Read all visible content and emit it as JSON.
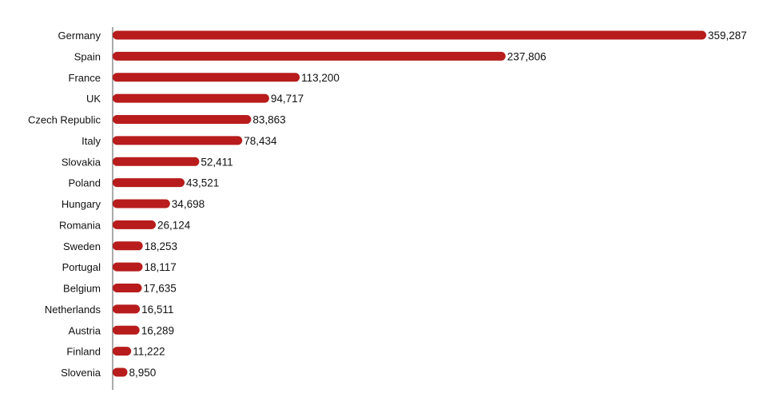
{
  "chart_data": {
    "type": "bar",
    "orientation": "horizontal",
    "categories": [
      "Germany",
      "Spain",
      "France",
      "UK",
      "Czech Republic",
      "Italy",
      "Slovakia",
      "Poland",
      "Hungary",
      "Romania",
      "Sweden",
      "Portugal",
      "Belgium",
      "Netherlands",
      "Austria",
      "Finland",
      "Slovenia"
    ],
    "values": [
      359287,
      237806,
      113200,
      94717,
      83863,
      78434,
      52411,
      43521,
      34698,
      26124,
      18253,
      18117,
      17635,
      16511,
      16289,
      11222,
      8950
    ],
    "value_labels": [
      "359,287",
      "237,806",
      "113,200",
      "94,717",
      "83,863",
      "78,434",
      "52,411",
      "43,521",
      "34,698",
      "26,124",
      "18,253",
      "18,117",
      "17,635",
      "16,511",
      "16,289",
      "11,222",
      "8,950"
    ],
    "xlim": [
      0,
      359287
    ],
    "grid": false,
    "legend": "none",
    "bar_color": "#b81c1c",
    "axis_color": "#555555",
    "text_color": "#111111"
  }
}
